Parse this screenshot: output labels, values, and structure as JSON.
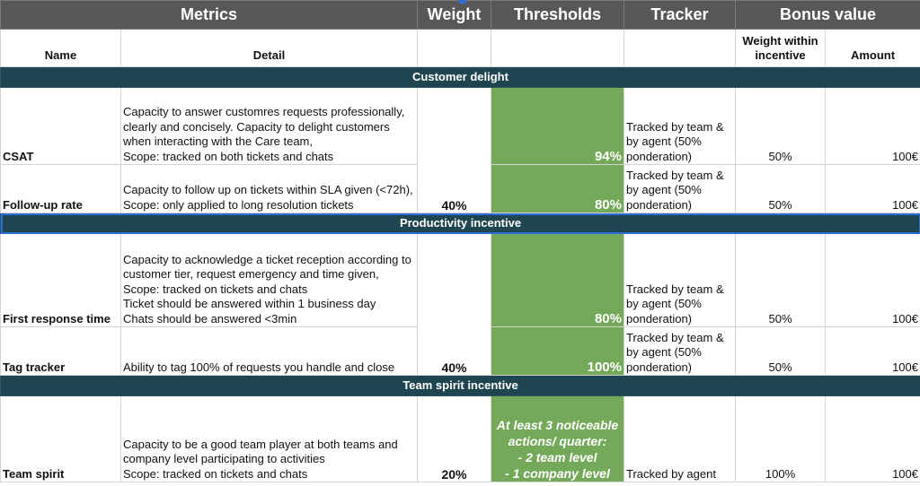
{
  "header": {
    "metrics": "Metrics",
    "weight": "Weight",
    "thresholds": "Thresholds",
    "tracker": "Tracker",
    "bonus_value": "Bonus value"
  },
  "subheader": {
    "name": "Name",
    "detail": "Detail",
    "weight_within_incentive": "Weight within incentive",
    "amount": "Amount"
  },
  "sections": {
    "customer_delight": "Customer delight",
    "productivity": "Productivity incentive",
    "team_spirit": "Team spirit incentive"
  },
  "rows": {
    "csat": {
      "name": "CSAT",
      "detail": "Capacity to answer customres requests professionally, clearly and concisely. Capacity to delight customers when interacting with the Care team,\nScope: tracked on both tickets and chats",
      "threshold": "94%",
      "tracker": "Tracked by team & by agent (50% ponderation)",
      "weight_within": "50%",
      "amount": "100€"
    },
    "followup": {
      "name": "Follow-up rate",
      "detail": "Capacity to follow up on tickets within SLA given (<72h),\nScope: only applied to long resolution tickets",
      "weight": "40%",
      "threshold": "80%",
      "tracker": "Tracked by team & by agent (50% ponderation)",
      "weight_within": "50%",
      "amount": "100€"
    },
    "first_response": {
      "name": "First response time",
      "detail": "Capacity to acknowledge a ticket reception according to customer tier, request emergency and time given,\nScope: tracked on tickets and chats\nTicket should be answered within 1 business day\nChats should be answered <3min",
      "threshold": "80%",
      "tracker": "Tracked by team & by agent (50% ponderation)",
      "weight_within": "50%",
      "amount": "100€"
    },
    "tag_tracker": {
      "name": "Tag tracker",
      "detail": "Ability to tag 100% of requests you handle and close",
      "weight": "40%",
      "threshold": "100%",
      "tracker": "Tracked by team & by agent (50% ponderation)",
      "weight_within": "50%",
      "amount": "100€"
    },
    "team_spirit": {
      "name": "Team spirit",
      "detail": "Capacity to be a good team player at both teams and company level participating to activities\nScope: tracked on tickets and chats",
      "weight": "20%",
      "threshold": "At least 3 noticeable actions/ quarter:\n- 2 team level\n- 1 company level",
      "tracker": "Tracked by agent",
      "weight_within": "100%",
      "amount": "100€"
    }
  }
}
